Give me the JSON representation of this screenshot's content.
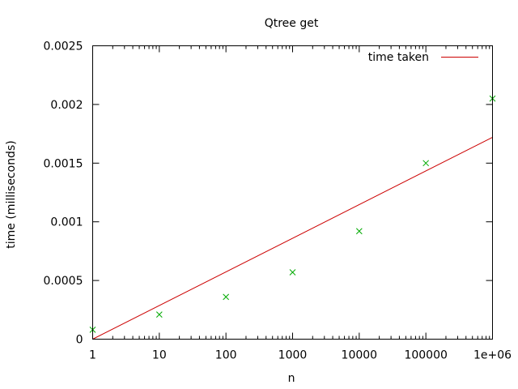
{
  "chart_data": {
    "type": "scatter",
    "title": "Qtree get",
    "xlabel": "n",
    "ylabel": "time (milliseconds)",
    "x_scale": "log",
    "xlim": [
      1,
      1000000
    ],
    "ylim": [
      0,
      0.0025
    ],
    "x_ticks": [
      1,
      10,
      100,
      1000,
      10000,
      100000,
      1000000
    ],
    "x_tick_labels": [
      "1",
      "10",
      "100",
      "1000",
      "10000",
      "100000",
      "1e+06"
    ],
    "y_ticks": [
      0,
      0.0005,
      0.001,
      0.0015,
      0.002,
      0.0025
    ],
    "y_tick_labels": [
      "0",
      "0.0005",
      "0.001",
      "0.0015",
      "0.002",
      "0.0025"
    ],
    "grid": false,
    "legend_position": "top-right",
    "legend": {
      "label": "time taken",
      "color": "#cc0000"
    },
    "line": {
      "x": [
        1,
        1000000
      ],
      "y": [
        0,
        0.00172
      ],
      "color": "#cc0000"
    },
    "points": {
      "x": [
        1,
        10,
        100,
        1000,
        10000,
        100000,
        1000000
      ],
      "y": [
        8e-05,
        0.00021,
        0.00036,
        0.00057,
        0.00092,
        0.0015,
        0.00205
      ],
      "color": "#00aa00"
    }
  }
}
